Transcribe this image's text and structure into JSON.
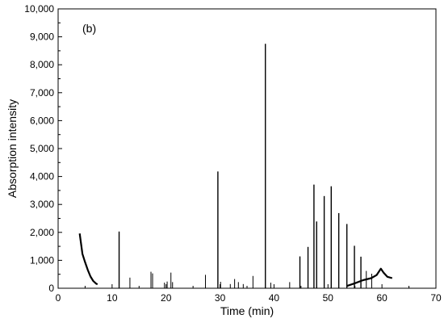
{
  "chart_data": {
    "type": "line",
    "panel_label": "(b)",
    "xlabel": "Time (min)",
    "ylabel": "Absorption intensity",
    "xlim": [
      0,
      70
    ],
    "ylim": [
      0,
      10000
    ],
    "x_ticks": [
      0,
      10,
      20,
      30,
      40,
      50,
      60,
      70
    ],
    "x_tick_labels": [
      "0",
      "10",
      "20",
      "30",
      "40",
      "50",
      "60",
      "70"
    ],
    "y_ticks": [
      0,
      1000,
      2000,
      3000,
      4000,
      5000,
      6000,
      7000,
      8000,
      9000,
      10000
    ],
    "y_tick_labels": [
      "0",
      "1,000",
      "2,000",
      "3,000",
      "4,000",
      "5,000",
      "6,000",
      "7,000",
      "8,000",
      "9,000",
      "10,000"
    ],
    "grid": false,
    "line_color": "#000000",
    "series": [
      {
        "peaks": [
          {
            "x": 11.3,
            "y": 2030
          },
          {
            "x": 13.3,
            "y": 380
          },
          {
            "x": 17.2,
            "y": 590
          },
          {
            "x": 17.5,
            "y": 530
          },
          {
            "x": 19.7,
            "y": 200
          },
          {
            "x": 20.2,
            "y": 240
          },
          {
            "x": 20.9,
            "y": 560
          },
          {
            "x": 21.2,
            "y": 220
          },
          {
            "x": 27.3,
            "y": 480
          },
          {
            "x": 29.6,
            "y": 4180
          },
          {
            "x": 30.1,
            "y": 230
          },
          {
            "x": 31.9,
            "y": 150
          },
          {
            "x": 32.7,
            "y": 330
          },
          {
            "x": 33.4,
            "y": 220
          },
          {
            "x": 34.3,
            "y": 150
          },
          {
            "x": 36.1,
            "y": 440
          },
          {
            "x": 38.4,
            "y": 8750
          },
          {
            "x": 39.4,
            "y": 200
          },
          {
            "x": 42.9,
            "y": 220
          },
          {
            "x": 44.8,
            "y": 1140
          },
          {
            "x": 46.3,
            "y": 1480
          },
          {
            "x": 47.4,
            "y": 3710
          },
          {
            "x": 47.9,
            "y": 2390
          },
          {
            "x": 49.3,
            "y": 3300
          },
          {
            "x": 50.6,
            "y": 3650
          },
          {
            "x": 52.0,
            "y": 2690
          },
          {
            "x": 53.5,
            "y": 2300
          },
          {
            "x": 54.9,
            "y": 1520
          },
          {
            "x": 56.1,
            "y": 1130
          },
          {
            "x": 57.1,
            "y": 620
          },
          {
            "x": 58.1,
            "y": 520
          },
          {
            "x": 65.0,
            "y": 60
          }
        ],
        "baseline_segments": [
          {
            "x": [
              4.0,
              4.5,
              5.0,
              5.5,
              6.0,
              6.5,
              7.0,
              7.3
            ],
            "y": [
              1960,
              1230,
              930,
              650,
              420,
              260,
              170,
              140
            ]
          },
          {
            "x": [
              53.5,
              55.0,
              56.5,
              58.0,
              59.0,
              59.8,
              60.3,
              61.0,
              61.9
            ],
            "y": [
              80,
              180,
              290,
              360,
              470,
              700,
              560,
              410,
              360
            ]
          }
        ]
      }
    ]
  }
}
